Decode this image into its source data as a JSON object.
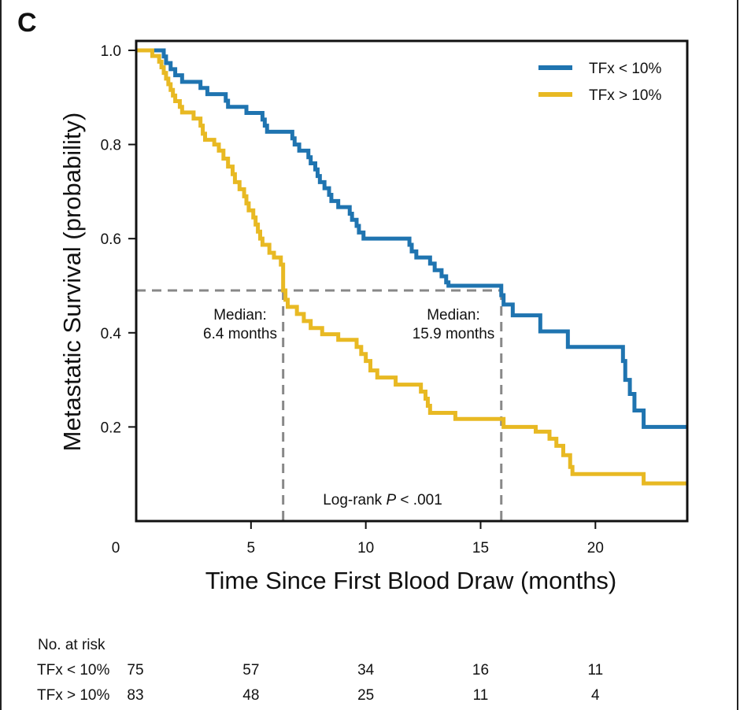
{
  "chart_data": {
    "type": "line",
    "subtype": "kaplan-meier",
    "panel_label": "C",
    "xlabel": "Time Since First Blood Draw (months)",
    "ylabel": "Metastatic Survival (probability)",
    "xlim": [
      0,
      24
    ],
    "ylim": [
      0.0,
      1.02
    ],
    "xticks": [
      0,
      5,
      10,
      15,
      20
    ],
    "yticks": [
      0.2,
      0.4,
      0.6,
      0.8,
      1.0
    ],
    "ytick_labels": [
      "0.2",
      "0.4",
      "0.6",
      "0.8",
      "1.0"
    ],
    "legend_position": "top-right",
    "colors": {
      "low": "#1f74b0",
      "high": "#e8b923",
      "reference": "#888888"
    },
    "series": [
      {
        "name": "TFx < 10%",
        "color": "#1f74b0",
        "steps": [
          [
            0,
            1.0
          ],
          [
            1.2,
            0.987
          ],
          [
            1.3,
            0.973
          ],
          [
            1.5,
            0.96
          ],
          [
            1.7,
            0.947
          ],
          [
            2.0,
            0.933
          ],
          [
            2.8,
            0.92
          ],
          [
            3.1,
            0.907
          ],
          [
            3.9,
            0.893
          ],
          [
            4.0,
            0.88
          ],
          [
            4.8,
            0.867
          ],
          [
            5.5,
            0.853
          ],
          [
            5.6,
            0.84
          ],
          [
            5.7,
            0.827
          ],
          [
            6.8,
            0.813
          ],
          [
            6.9,
            0.8
          ],
          [
            7.1,
            0.787
          ],
          [
            7.5,
            0.773
          ],
          [
            7.6,
            0.76
          ],
          [
            7.8,
            0.747
          ],
          [
            7.9,
            0.733
          ],
          [
            8.0,
            0.72
          ],
          [
            8.2,
            0.707
          ],
          [
            8.4,
            0.693
          ],
          [
            8.5,
            0.68
          ],
          [
            8.8,
            0.667
          ],
          [
            9.3,
            0.653
          ],
          [
            9.4,
            0.64
          ],
          [
            9.6,
            0.627
          ],
          [
            9.7,
            0.613
          ],
          [
            9.9,
            0.6
          ],
          [
            11.9,
            0.587
          ],
          [
            12.0,
            0.573
          ],
          [
            12.2,
            0.56
          ],
          [
            12.8,
            0.547
          ],
          [
            13.0,
            0.533
          ],
          [
            13.3,
            0.52
          ],
          [
            13.5,
            0.507
          ],
          [
            13.6,
            0.5
          ],
          [
            15.9,
            0.48
          ],
          [
            16.0,
            0.46
          ],
          [
            16.4,
            0.437
          ],
          [
            17.6,
            0.403
          ],
          [
            18.8,
            0.37
          ],
          [
            21.2,
            0.34
          ],
          [
            21.3,
            0.3
          ],
          [
            21.5,
            0.27
          ],
          [
            21.7,
            0.235
          ],
          [
            22.1,
            0.2
          ],
          [
            24.0,
            0.2
          ]
        ]
      },
      {
        "name": "TFx > 10%",
        "color": "#e8b923",
        "steps": [
          [
            0,
            1.0
          ],
          [
            0.7,
            0.988
          ],
          [
            1.0,
            0.976
          ],
          [
            1.1,
            0.964
          ],
          [
            1.2,
            0.952
          ],
          [
            1.3,
            0.94
          ],
          [
            1.4,
            0.928
          ],
          [
            1.5,
            0.916
          ],
          [
            1.6,
            0.904
          ],
          [
            1.7,
            0.892
          ],
          [
            1.9,
            0.88
          ],
          [
            2.0,
            0.868
          ],
          [
            2.5,
            0.855
          ],
          [
            2.8,
            0.84
          ],
          [
            2.9,
            0.823
          ],
          [
            3.0,
            0.81
          ],
          [
            3.4,
            0.8
          ],
          [
            3.6,
            0.787
          ],
          [
            3.8,
            0.77
          ],
          [
            4.0,
            0.753
          ],
          [
            4.2,
            0.737
          ],
          [
            4.3,
            0.72
          ],
          [
            4.5,
            0.705
          ],
          [
            4.7,
            0.69
          ],
          [
            4.8,
            0.675
          ],
          [
            4.9,
            0.66
          ],
          [
            5.1,
            0.645
          ],
          [
            5.2,
            0.63
          ],
          [
            5.3,
            0.615
          ],
          [
            5.4,
            0.6
          ],
          [
            5.5,
            0.587
          ],
          [
            5.8,
            0.57
          ],
          [
            6.0,
            0.56
          ],
          [
            6.3,
            0.545
          ],
          [
            6.4,
            0.49
          ],
          [
            6.5,
            0.47
          ],
          [
            6.6,
            0.455
          ],
          [
            7.0,
            0.44
          ],
          [
            7.3,
            0.425
          ],
          [
            7.6,
            0.41
          ],
          [
            8.1,
            0.397
          ],
          [
            8.8,
            0.385
          ],
          [
            9.6,
            0.37
          ],
          [
            9.8,
            0.355
          ],
          [
            10.0,
            0.34
          ],
          [
            10.2,
            0.32
          ],
          [
            10.5,
            0.305
          ],
          [
            11.3,
            0.29
          ],
          [
            12.4,
            0.275
          ],
          [
            12.6,
            0.26
          ],
          [
            12.7,
            0.245
          ],
          [
            12.8,
            0.23
          ],
          [
            13.9,
            0.217
          ],
          [
            16.0,
            0.2
          ],
          [
            17.4,
            0.19
          ],
          [
            18.0,
            0.175
          ],
          [
            18.3,
            0.16
          ],
          [
            18.6,
            0.14
          ],
          [
            18.9,
            0.115
          ],
          [
            19.0,
            0.1
          ],
          [
            22.1,
            0.08
          ],
          [
            24.0,
            0.08
          ]
        ]
      }
    ],
    "reference_lines": {
      "y": 0.49,
      "median_low": 15.9,
      "median_high": 6.4
    },
    "annotations": {
      "median_high": {
        "line1": "Median:",
        "line2": "6.4 months"
      },
      "median_low": {
        "line1": "Median:",
        "line2": "15.9 months"
      },
      "logrank_prefix": "Log-rank ",
      "logrank_p": "P",
      "logrank_suffix": " < .001"
    },
    "at_risk": {
      "title": "No. at risk",
      "rows": [
        {
          "label": "TFx < 10%",
          "values": [
            "75",
            "57",
            "34",
            "16",
            "11"
          ]
        },
        {
          "label": "TFx > 10%",
          "values": [
            "83",
            "48",
            "25",
            "11",
            "4"
          ]
        }
      ]
    }
  }
}
